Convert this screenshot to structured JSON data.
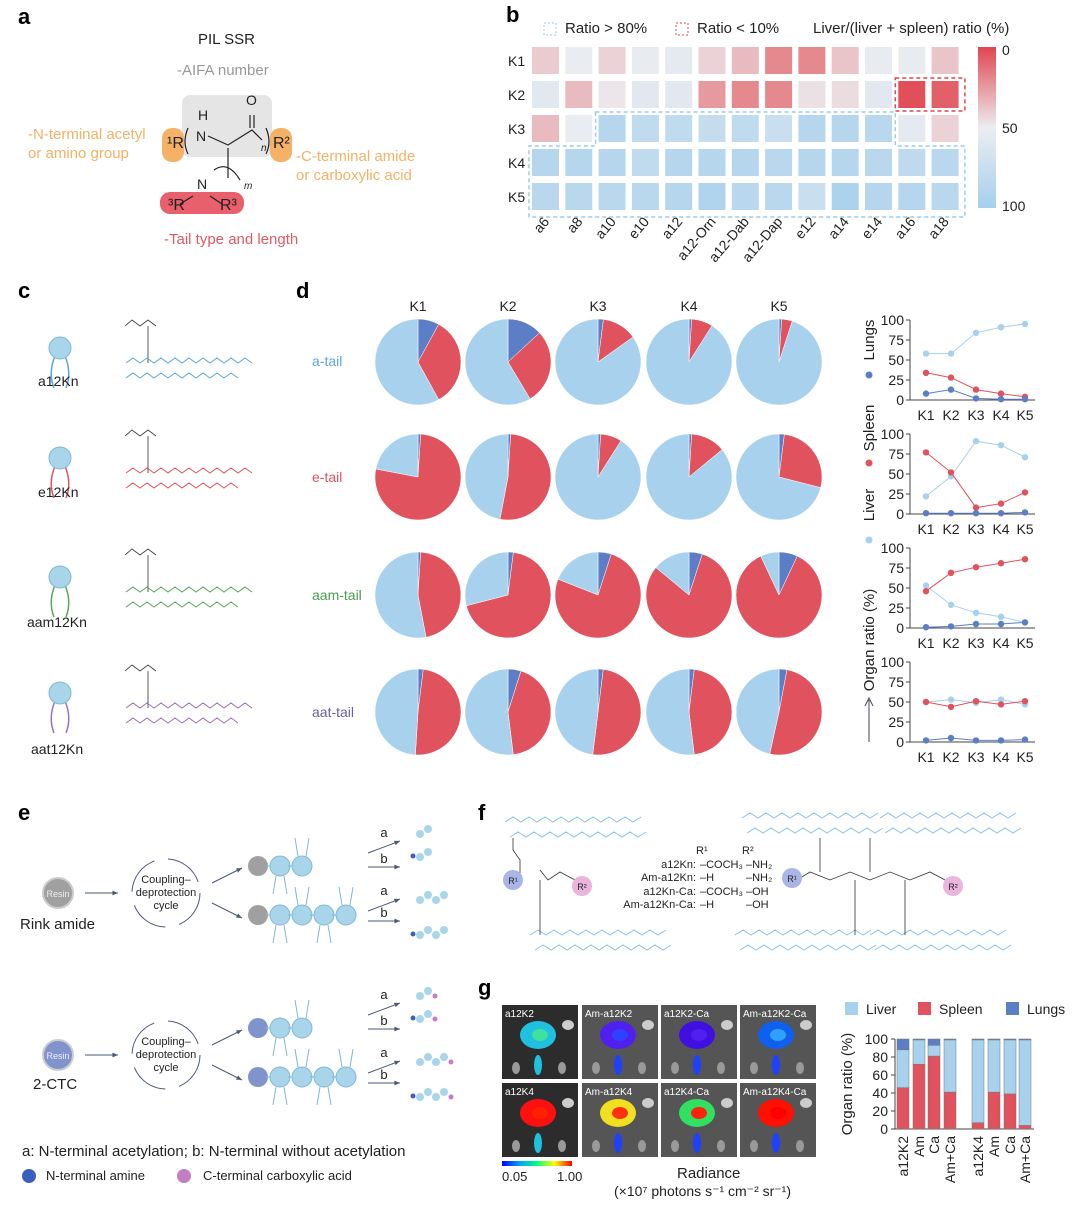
{
  "panels": {
    "a": "a",
    "b": "b",
    "c": "c",
    "d": "d",
    "e": "e",
    "f": "f",
    "g": "g"
  },
  "colors": {
    "liver": "#a8d1ee",
    "spleen": "#e0525e",
    "lungs": "#5b7ec7",
    "orange": "#f5b165",
    "tail_red": "#e05a64",
    "a_tail": "#5aa6e0",
    "e_tail": "#e0525e",
    "aam_tail": "#4a9a50",
    "aat_tail": "#6a5fa0"
  },
  "panel_a": {
    "title": "PIL SSR",
    "aifa": "-AIFA number",
    "n_term": [
      "-N-terminal acetyl",
      "or amino group"
    ],
    "c_term": [
      "-C-terminal amide",
      "or carboxylic acid"
    ],
    "tail": "-Tail type and length",
    "atoms": {
      "h": "H",
      "n": "N",
      "o": "O",
      "r1": "¹R",
      "r2": "R²",
      "r3a": "³R",
      "r3b": "R³",
      "n_sub": "n",
      "m_sub": "m"
    }
  },
  "panel_c": {
    "lipids": [
      {
        "name": "a12Kn",
        "color": "#5aa6e0"
      },
      {
        "name": "e12Kn",
        "color": "#e0525e"
      },
      {
        "name": "aam12Kn",
        "color": "#5aa65a"
      },
      {
        "name": "aat12Kn",
        "color": "#9a6fc0"
      }
    ]
  },
  "panel_e": {
    "resin": "Resin",
    "rink": "Rink amide",
    "ctc": "2-CTC",
    "cycle": [
      "Coupling–",
      "deprotection",
      "cycle"
    ],
    "a": "a",
    "b": "b",
    "footnote": "a: N-terminal acetylation; b: N-terminal without acetylation",
    "legend": [
      {
        "label": "N-terminal amine",
        "color": "#3a5fbf"
      },
      {
        "label": "C-terminal carboxylic acid",
        "color": "#c77cc7"
      }
    ]
  },
  "panel_f": {
    "headers": [
      "R¹",
      "R²"
    ],
    "rows": [
      {
        "name": "a12Kn:",
        "r1": "–COCH₃",
        "r2": "–NH₂"
      },
      {
        "name": "Am-a12Kn:",
        "r1": "–H",
        "r2": "–NH₂"
      },
      {
        "name": "a12Kn-Ca:",
        "r1": "–COCH₃",
        "r2": "–OH"
      },
      {
        "name": "Am-a12Kn-Ca:",
        "r1": "–H",
        "r2": "–OH"
      }
    ],
    "r1": "R¹",
    "r2": "R²"
  },
  "panel_g": {
    "images": [
      "a12K2",
      "Am-a12K2",
      "a12K2-Ca",
      "Am-a12K2-Ca",
      "a12K4",
      "Am-a12K4",
      "a12K4-Ca",
      "Am-a12K4-Ca"
    ],
    "scale_min": "0.05",
    "scale_max": "1.00",
    "radiance": "Radiance",
    "radiance_unit": "(×10⁷ photons s⁻¹ cm⁻² sr⁻¹)"
  },
  "chart_data": [
    {
      "id": "b",
      "type": "heatmap",
      "title": "Liver/(liver + spleen) ratio (%)",
      "legend": [
        "Ratio > 80%",
        "Ratio < 10%"
      ],
      "rows": [
        "K1",
        "K2",
        "K3",
        "K4",
        "K5"
      ],
      "cols": [
        "a6",
        "a8",
        "a10",
        "e10",
        "a12",
        "a12-Orn",
        "a12-Dab",
        "a12-Dap",
        "e12",
        "a14",
        "e14",
        "a16",
        "a18"
      ],
      "values": [
        [
          40,
          52,
          42,
          53,
          55,
          42,
          35,
          20,
          20,
          38,
          53,
          53,
          38
        ],
        [
          58,
          35,
          48,
          58,
          58,
          25,
          20,
          20,
          46,
          45,
          58,
          3,
          8
        ],
        [
          35,
          52,
          88,
          80,
          80,
          78,
          80,
          75,
          88,
          88,
          85,
          55,
          42
        ],
        [
          88,
          88,
          88,
          80,
          88,
          88,
          88,
          85,
          88,
          88,
          85,
          82,
          85
        ],
        [
          85,
          85,
          85,
          85,
          88,
          92,
          85,
          85,
          75,
          95,
          88,
          88,
          85
        ]
      ],
      "colorbar_ticks": [
        "0",
        "50",
        "100"
      ],
      "range": [
        0,
        100
      ]
    },
    {
      "id": "d-pies",
      "type": "pie",
      "columns": [
        "K1",
        "K2",
        "K3",
        "K4",
        "K5"
      ],
      "tails": [
        "a-tail",
        "e-tail",
        "aam-tail",
        "aat-tail"
      ],
      "slice_order": [
        "lungs",
        "spleen",
        "liver"
      ],
      "liver": [
        [
          58,
          58,
          84,
          91,
          95
        ],
        [
          22,
          47,
          91,
          86,
          71
        ],
        [
          53,
          29,
          19,
          14,
          7
        ],
        [
          50,
          53,
          49,
          53,
          47
        ]
      ],
      "spleen": [
        [
          34,
          28,
          13,
          8,
          4
        ],
        [
          77,
          52,
          8,
          13,
          27
        ],
        [
          46,
          69,
          76,
          81,
          86
        ],
        [
          50,
          44,
          51,
          47,
          51
        ]
      ],
      "lungs": [
        [
          8,
          13,
          2,
          1,
          1
        ],
        [
          1,
          1,
          1,
          1,
          2
        ],
        [
          1,
          2,
          5,
          5,
          7
        ],
        [
          2,
          5,
          2,
          2,
          3
        ]
      ]
    },
    {
      "id": "d-lines",
      "type": "line",
      "x": [
        "K1",
        "K2",
        "K3",
        "K4",
        "K5"
      ],
      "yticks": [
        "0",
        "25",
        "50",
        "75",
        "100"
      ],
      "ylim": [
        0,
        100
      ],
      "ylabel": "Organ ratio (%)",
      "legend": [
        "Lungs",
        "Spleen",
        "Liver"
      ]
    },
    {
      "id": "g",
      "type": "bar",
      "stacked": true,
      "legend": [
        "Liver",
        "Spleen",
        "Lungs"
      ],
      "ylabel": "Organ ratio (%)",
      "yticks": [
        "0",
        "20",
        "40",
        "60",
        "80",
        "100"
      ],
      "ylim": [
        0,
        100
      ],
      "categories": [
        "a12K2",
        "Am",
        "Ca",
        "Am+Ca",
        "a12K4",
        "Am",
        "Ca",
        "Am+Ca"
      ],
      "series": [
        {
          "name": "Spleen",
          "values": [
            46,
            72,
            81,
            41,
            7,
            41,
            39,
            4
          ]
        },
        {
          "name": "Liver",
          "values": [
            42,
            27,
            12,
            58,
            92,
            58,
            60,
            95
          ]
        },
        {
          "name": "Lungs",
          "values": [
            12,
            1,
            7,
            1,
            1,
            1,
            1,
            1
          ]
        }
      ]
    }
  ]
}
